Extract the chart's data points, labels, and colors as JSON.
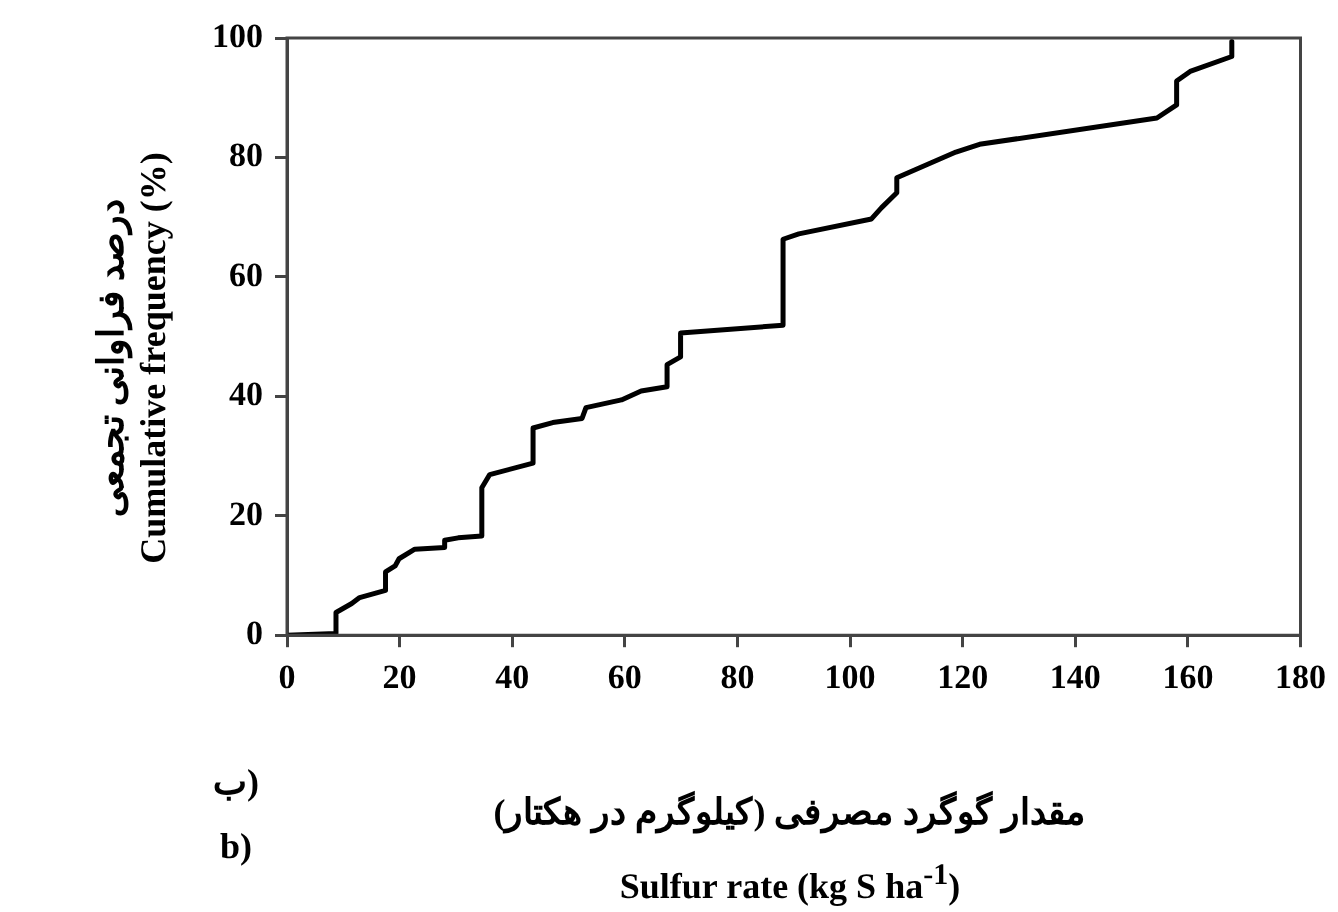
{
  "chart_data": {
    "type": "line",
    "xlabel": "مقدار گوگرد مصرفی (کیلوگرم در هکتار)\nSulfur rate (kg S ha$^{-1}$)",
    "ylabel": "درصد فراوانی تجمعی\nCumulative frequency (%)",
    "annotations": [
      "ب)",
      "b)"
    ],
    "series": [
      {
        "color": "#000000",
        "x": [
          0,
          8.7,
          8.7,
          11.5,
          12.9,
          17.5,
          17.5,
          19.2,
          19.9,
          22.7,
          28,
          28,
          30.4,
          34.6,
          34.6,
          36,
          43.7,
          43.7,
          47.2,
          52.4,
          53.1,
          59.4,
          62.9,
          67.5,
          67.5,
          69.9,
          69.9,
          88.1,
          88.1,
          90.9,
          103.8,
          105.6,
          108.3,
          108.3,
          118.8,
          123,
          154.5,
          158,
          158,
          160.4,
          167.8,
          167.8
        ],
        "values": [
          0,
          0.3,
          3.8,
          5.3,
          6.3,
          7.5,
          10.6,
          11.6,
          12.8,
          14.4,
          14.7,
          15.9,
          16.3,
          16.6,
          24.7,
          26.9,
          28.8,
          34.7,
          35.6,
          36.3,
          38.1,
          39.4,
          40.9,
          41.6,
          45.3,
          46.6,
          50.6,
          51.9,
          66.3,
          67.2,
          69.7,
          71.6,
          74.1,
          76.6,
          80.9,
          82.2,
          86.6,
          88.8,
          92.8,
          94.4,
          96.9,
          99.4
        ]
      }
    ],
    "xlim": [
      0,
      180
    ],
    "xticks": [
      0,
      20,
      40,
      60,
      80,
      100,
      120,
      140,
      160,
      180
    ],
    "ylim": [
      0,
      100
    ],
    "yticks": [
      0,
      20,
      40,
      60,
      80,
      100
    ],
    "grid": false,
    "legend": false,
    "marker": "none",
    "line_style": "solid"
  }
}
